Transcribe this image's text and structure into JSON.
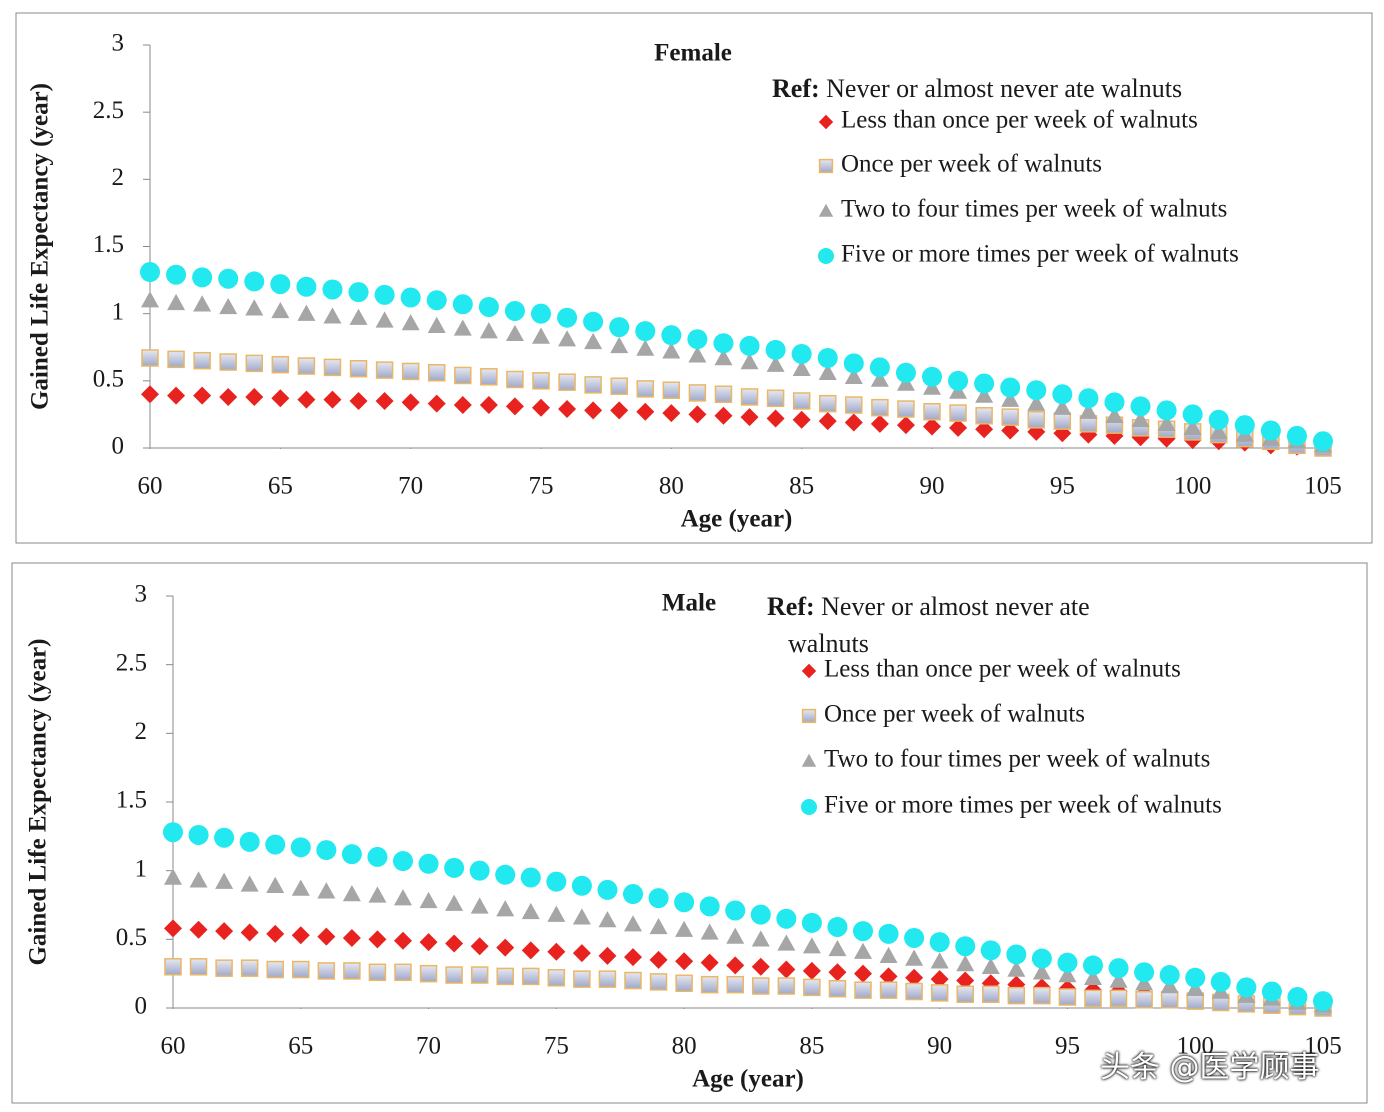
{
  "chart_data": [
    {
      "type": "scatter",
      "title": "Female",
      "reference_label": "Ref:",
      "reference_text": "Never or almost never ate walnuts",
      "x_label": "Age (year)",
      "y_label": "Gained Life Expectancy (year)",
      "xlim": [
        60,
        105
      ],
      "xticks": [
        60,
        65,
        70,
        75,
        80,
        85,
        90,
        95,
        100,
        105
      ],
      "ylim": [
        0,
        3
      ],
      "yticks": [
        0,
        0.5,
        1,
        1.5,
        2,
        2.5,
        3
      ],
      "x": [
        60,
        61,
        62,
        63,
        64,
        65,
        66,
        67,
        68,
        69,
        70,
        71,
        72,
        73,
        74,
        75,
        76,
        77,
        78,
        79,
        80,
        81,
        82,
        83,
        84,
        85,
        86,
        87,
        88,
        89,
        90,
        91,
        92,
        93,
        94,
        95,
        96,
        97,
        98,
        99,
        100,
        101,
        102,
        103,
        104,
        105
      ],
      "series": [
        {
          "name": "Less than once per week of walnuts",
          "color": "#e8231f",
          "marker": "diamond",
          "values": [
            0.4,
            0.39,
            0.39,
            0.38,
            0.38,
            0.37,
            0.36,
            0.36,
            0.35,
            0.35,
            0.34,
            0.33,
            0.32,
            0.32,
            0.31,
            0.3,
            0.29,
            0.28,
            0.28,
            0.27,
            0.26,
            0.25,
            0.24,
            0.23,
            0.22,
            0.21,
            0.2,
            0.19,
            0.18,
            0.17,
            0.16,
            0.15,
            0.14,
            0.13,
            0.12,
            0.11,
            0.1,
            0.09,
            0.08,
            0.07,
            0.06,
            0.05,
            0.04,
            0.02,
            0.01,
            0.0
          ]
        },
        {
          "name": "Once per week of walnuts",
          "color": "#c3c8dc",
          "marker": "square",
          "values": [
            0.67,
            0.66,
            0.65,
            0.64,
            0.63,
            0.62,
            0.61,
            0.6,
            0.59,
            0.58,
            0.57,
            0.56,
            0.54,
            0.53,
            0.51,
            0.5,
            0.49,
            0.47,
            0.46,
            0.44,
            0.43,
            0.41,
            0.4,
            0.38,
            0.37,
            0.35,
            0.33,
            0.32,
            0.3,
            0.29,
            0.27,
            0.26,
            0.24,
            0.23,
            0.21,
            0.2,
            0.18,
            0.17,
            0.15,
            0.14,
            0.12,
            0.1,
            0.07,
            0.05,
            0.02,
            0.0
          ]
        },
        {
          "name": "Two to four times per week of walnuts",
          "color": "#a6a6a6",
          "marker": "triangle",
          "values": [
            1.1,
            1.08,
            1.07,
            1.05,
            1.04,
            1.02,
            1.0,
            0.98,
            0.97,
            0.95,
            0.93,
            0.91,
            0.89,
            0.87,
            0.85,
            0.83,
            0.81,
            0.79,
            0.76,
            0.74,
            0.72,
            0.69,
            0.67,
            0.64,
            0.62,
            0.59,
            0.56,
            0.53,
            0.51,
            0.48,
            0.45,
            0.42,
            0.39,
            0.36,
            0.33,
            0.3,
            0.27,
            0.24,
            0.21,
            0.18,
            0.15,
            0.12,
            0.1,
            0.07,
            0.05,
            0.02
          ]
        },
        {
          "name": "Five or more times per week of walnuts",
          "color": "#22e8ef",
          "marker": "circle",
          "values": [
            1.31,
            1.29,
            1.27,
            1.26,
            1.24,
            1.22,
            1.2,
            1.18,
            1.16,
            1.14,
            1.12,
            1.1,
            1.07,
            1.05,
            1.02,
            1.0,
            0.97,
            0.94,
            0.9,
            0.87,
            0.84,
            0.81,
            0.78,
            0.76,
            0.73,
            0.7,
            0.67,
            0.63,
            0.6,
            0.56,
            0.53,
            0.5,
            0.48,
            0.45,
            0.43,
            0.4,
            0.37,
            0.34,
            0.31,
            0.28,
            0.25,
            0.21,
            0.17,
            0.13,
            0.09,
            0.05
          ]
        }
      ]
    },
    {
      "type": "scatter",
      "title": "Male",
      "reference_label": "Ref:",
      "reference_text": "Never or almost never ate walnuts",
      "x_label": "Age (year)",
      "y_label": "Gained Life Expectancy (year)",
      "xlim": [
        60,
        105
      ],
      "xticks": [
        60,
        65,
        70,
        75,
        80,
        85,
        90,
        95,
        100,
        105
      ],
      "ylim": [
        0,
        3
      ],
      "yticks": [
        0,
        0.5,
        1,
        1.5,
        2,
        2.5,
        3
      ],
      "x": [
        60,
        61,
        62,
        63,
        64,
        65,
        66,
        67,
        68,
        69,
        70,
        71,
        72,
        73,
        74,
        75,
        76,
        77,
        78,
        79,
        80,
        81,
        82,
        83,
        84,
        85,
        86,
        87,
        88,
        89,
        90,
        91,
        92,
        93,
        94,
        95,
        96,
        97,
        98,
        99,
        100,
        101,
        102,
        103,
        104,
        105
      ],
      "series": [
        {
          "name": "Less than once per week of walnuts",
          "color": "#e8231f",
          "marker": "diamond",
          "values": [
            0.58,
            0.57,
            0.56,
            0.55,
            0.54,
            0.53,
            0.52,
            0.51,
            0.5,
            0.49,
            0.48,
            0.47,
            0.45,
            0.44,
            0.42,
            0.41,
            0.4,
            0.38,
            0.37,
            0.35,
            0.34,
            0.33,
            0.31,
            0.3,
            0.28,
            0.27,
            0.26,
            0.25,
            0.23,
            0.22,
            0.21,
            0.2,
            0.18,
            0.17,
            0.15,
            0.14,
            0.13,
            0.12,
            0.1,
            0.09,
            0.08,
            0.07,
            0.05,
            0.04,
            0.02,
            0.01
          ]
        },
        {
          "name": "Once per week of walnuts",
          "color": "#c3c8dc",
          "marker": "square",
          "values": [
            0.3,
            0.3,
            0.29,
            0.29,
            0.28,
            0.28,
            0.27,
            0.27,
            0.26,
            0.26,
            0.25,
            0.24,
            0.24,
            0.23,
            0.23,
            0.22,
            0.21,
            0.21,
            0.2,
            0.19,
            0.18,
            0.17,
            0.17,
            0.16,
            0.16,
            0.15,
            0.14,
            0.13,
            0.13,
            0.12,
            0.11,
            0.1,
            0.1,
            0.09,
            0.09,
            0.08,
            0.07,
            0.07,
            0.06,
            0.06,
            0.05,
            0.04,
            0.03,
            0.02,
            0.01,
            0.0
          ]
        },
        {
          "name": "Two to four times per week of walnuts",
          "color": "#a6a6a6",
          "marker": "triangle",
          "values": [
            0.95,
            0.93,
            0.92,
            0.9,
            0.89,
            0.87,
            0.85,
            0.83,
            0.82,
            0.8,
            0.78,
            0.76,
            0.74,
            0.72,
            0.7,
            0.68,
            0.66,
            0.64,
            0.61,
            0.59,
            0.57,
            0.55,
            0.52,
            0.5,
            0.47,
            0.45,
            0.43,
            0.41,
            0.38,
            0.36,
            0.34,
            0.32,
            0.3,
            0.28,
            0.26,
            0.24,
            0.22,
            0.2,
            0.18,
            0.16,
            0.14,
            0.12,
            0.09,
            0.07,
            0.04,
            0.02
          ]
        },
        {
          "name": "Five or more times per week of walnuts",
          "color": "#22e8ef",
          "marker": "circle",
          "values": [
            1.28,
            1.26,
            1.24,
            1.21,
            1.19,
            1.17,
            1.15,
            1.12,
            1.1,
            1.07,
            1.05,
            1.02,
            1.0,
            0.97,
            0.95,
            0.92,
            0.89,
            0.86,
            0.83,
            0.8,
            0.77,
            0.74,
            0.71,
            0.68,
            0.65,
            0.62,
            0.59,
            0.56,
            0.54,
            0.51,
            0.48,
            0.45,
            0.42,
            0.39,
            0.36,
            0.33,
            0.31,
            0.29,
            0.26,
            0.24,
            0.22,
            0.19,
            0.15,
            0.12,
            0.08,
            0.05
          ]
        }
      ]
    }
  ],
  "watermark": "头条 @医学顾事"
}
